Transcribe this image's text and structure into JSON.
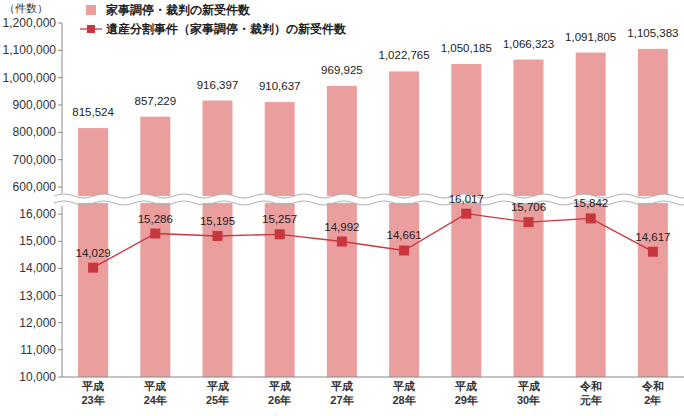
{
  "chart_data": {
    "type": "bar",
    "ylabel": "（件数）",
    "categories": [
      "平成23年",
      "平成24年",
      "平成25年",
      "平成26年",
      "平成27年",
      "平成28年",
      "平成29年",
      "平成30年",
      "令和元年",
      "令和2年"
    ],
    "series": [
      {
        "name": "家事調停・裁判の新受件数",
        "type": "bar",
        "axis": "y2",
        "color": "#eb9e9e",
        "values": [
          815524,
          857229,
          916397,
          910637,
          969925,
          1022765,
          1050185,
          1066323,
          1091805,
          1105383
        ],
        "value_labels": [
          "815,524",
          "857,229",
          "916,397",
          "910,637",
          "969,925",
          "1,022,765",
          "1,050,185",
          "1,066,323",
          "1,091,805",
          "1,105,383"
        ]
      },
      {
        "name": "遺産分割事件（家事調停・裁判）の新受件数",
        "type": "line",
        "color": "#c8363e",
        "marker": "square",
        "values": [
          14029,
          15286,
          15195,
          15257,
          14992,
          14661,
          16017,
          15706,
          15842,
          14617
        ],
        "value_labels": [
          "14,029",
          "15,286",
          "15,195",
          "15,257",
          "14,992",
          "14,661",
          "16,017",
          "15,706",
          "15,842",
          "14,617"
        ]
      }
    ],
    "ylim": [
      10000,
      16300
    ],
    "yticks": [
      {
        "value": 10000,
        "label": "10,000"
      },
      {
        "value": 11000,
        "label": "11,000"
      },
      {
        "value": 12000,
        "label": "12,000"
      },
      {
        "value": 13000,
        "label": "13,000"
      },
      {
        "value": 14000,
        "label": "14,000"
      },
      {
        "value": 15000,
        "label": "15,000"
      },
      {
        "value": 16000,
        "label": "16,000"
      }
    ],
    "y2lim": [
      600000,
      1200000
    ],
    "y2ticks": [
      {
        "value": 600000,
        "label": "600,000"
      },
      {
        "value": 700000,
        "label": "700,000"
      },
      {
        "value": 800000,
        "label": "800,000"
      },
      {
        "value": 900000,
        "label": "900,000"
      },
      {
        "value": 1000000,
        "label": "1,000,000"
      },
      {
        "value": 1100000,
        "label": "1,100,000"
      },
      {
        "value": 1200000,
        "label": "1,200,000"
      }
    ],
    "data_labels": true,
    "legend": "top-left",
    "grid": false
  }
}
